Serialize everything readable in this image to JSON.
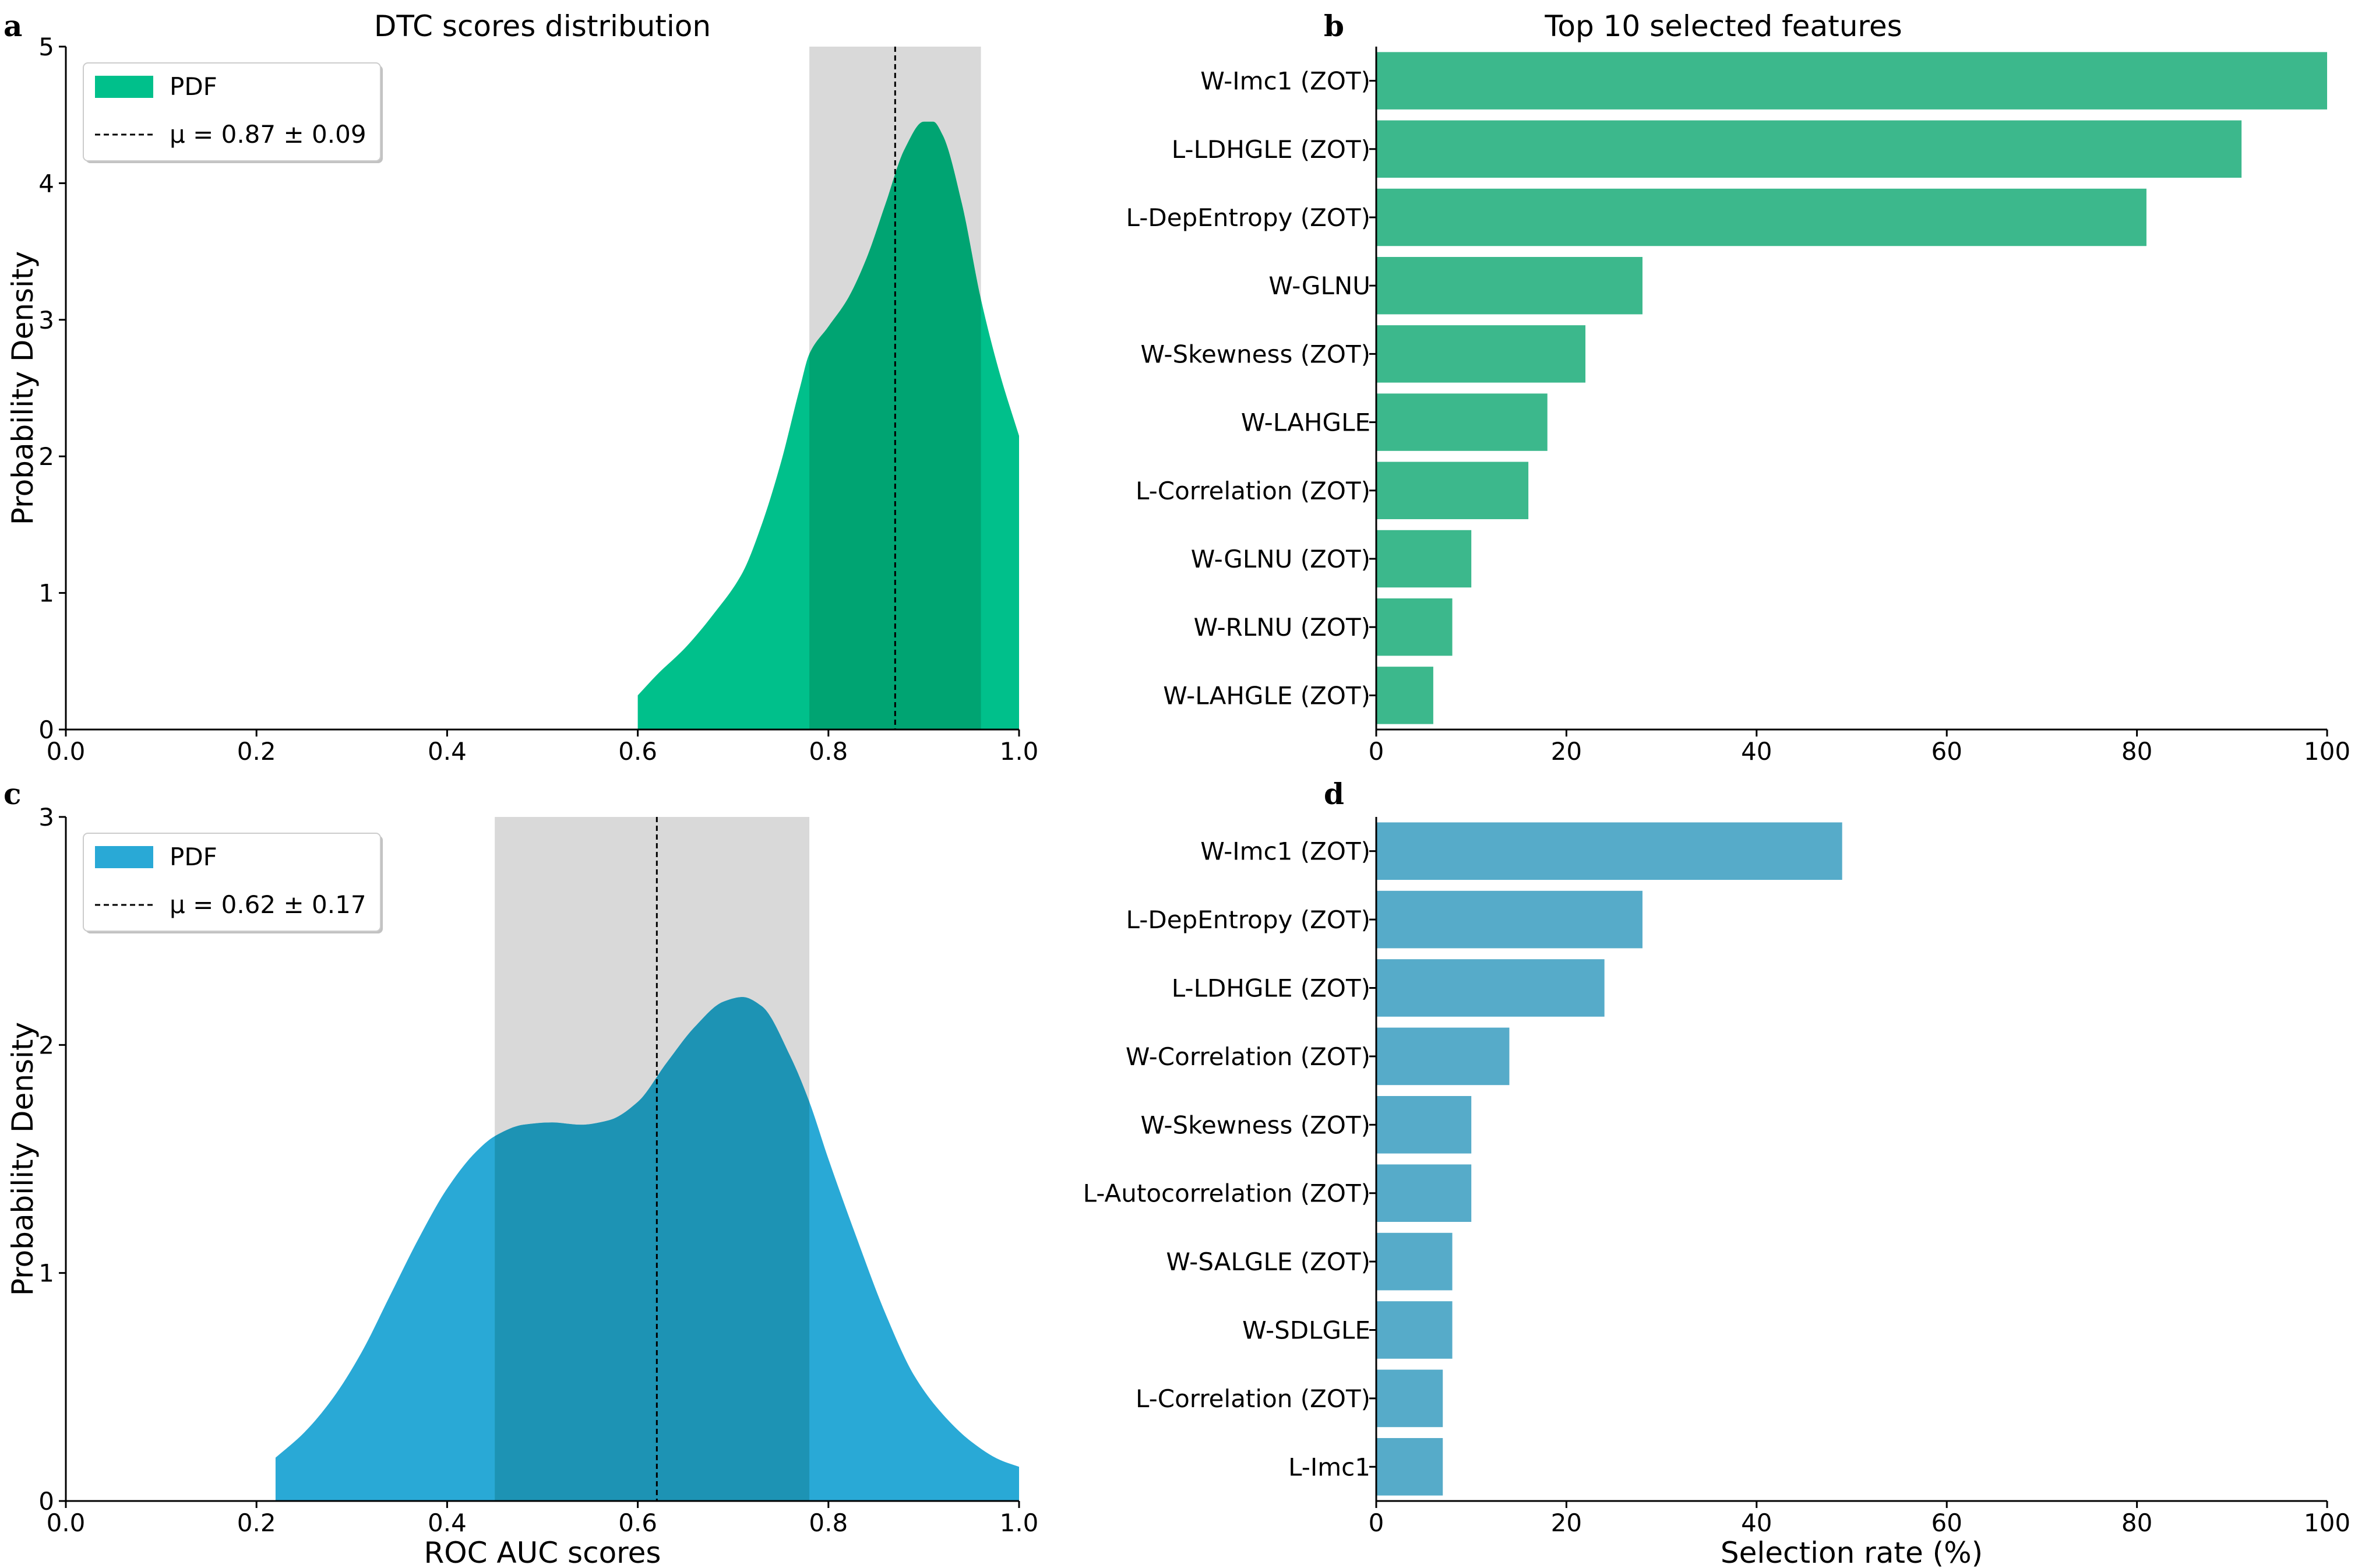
{
  "chart_data": [
    {
      "panel": "a",
      "type": "area",
      "title": "DTC scores distribution",
      "xlabel": "",
      "ylabel": "Probability Density",
      "xlim": [
        0.0,
        1.0
      ],
      "ylim": [
        0,
        5
      ],
      "xticks": [
        0.0,
        0.2,
        0.4,
        0.6,
        0.8,
        1.0
      ],
      "xtick_labels": [
        "0.0",
        "0.2",
        "0.4",
        "0.6",
        "0.8",
        "1.0"
      ],
      "yticks": [
        0,
        1,
        2,
        3,
        4,
        5
      ],
      "ytick_labels": [
        "0",
        "1",
        "2",
        "3",
        "4",
        "5"
      ],
      "series": [
        {
          "name": "PDF",
          "x": [
            0.6,
            0.62,
            0.65,
            0.68,
            0.71,
            0.73,
            0.75,
            0.77,
            0.78,
            0.8,
            0.82,
            0.84,
            0.86,
            0.88,
            0.9,
            0.91,
            0.92,
            0.94,
            0.96,
            0.98,
            1.0
          ],
          "y": [
            0.25,
            0.4,
            0.6,
            0.85,
            1.15,
            1.5,
            1.95,
            2.5,
            2.75,
            2.95,
            3.15,
            3.45,
            3.85,
            4.25,
            4.45,
            4.45,
            4.35,
            3.85,
            3.15,
            2.6,
            2.15
          ]
        }
      ],
      "mean": 0.87,
      "std": 0.09,
      "band": [
        0.78,
        0.96
      ],
      "legend": {
        "pdf_label": "PDF",
        "mean_label": "μ = 0.87 ± 0.09",
        "placement": "upper-left"
      },
      "colors": {
        "fill": "#00c08b",
        "fill_dark": "#00a472",
        "band": "#d9d9d9"
      }
    },
    {
      "panel": "b",
      "type": "bar",
      "orientation": "horizontal",
      "title": "Top 10 selected features",
      "xlabel": "",
      "xlim": [
        0,
        100
      ],
      "xticks": [
        0,
        20,
        40,
        60,
        80,
        100
      ],
      "xtick_labels": [
        "0",
        "20",
        "40",
        "60",
        "80",
        "100"
      ],
      "categories": [
        "W-Imc1 (ZOT)",
        "L-LDHGLE (ZOT)",
        "L-DepEntropy (ZOT)",
        "W-GLNU",
        "W-Skewness (ZOT)",
        "W-LAHGLE",
        "L-Correlation (ZOT)",
        "W-GLNU (ZOT)",
        "W-RLNU (ZOT)",
        "W-LAHGLE (ZOT)"
      ],
      "values": [
        100,
        91,
        81,
        28,
        22,
        18,
        16,
        10,
        8,
        6
      ],
      "colors": {
        "bar": "#3cb88c"
      }
    },
    {
      "panel": "c",
      "type": "area",
      "title": "",
      "xlabel": "ROC AUC scores",
      "ylabel": "Probability Density",
      "xlim": [
        0.0,
        1.0
      ],
      "ylim": [
        0,
        3
      ],
      "xticks": [
        0.0,
        0.2,
        0.4,
        0.6,
        0.8,
        1.0
      ],
      "xtick_labels": [
        "0.0",
        "0.2",
        "0.4",
        "0.6",
        "0.8",
        "1.0"
      ],
      "yticks": [
        0,
        1,
        2,
        3
      ],
      "ytick_labels": [
        "0",
        "1",
        "2",
        "3"
      ],
      "series": [
        {
          "name": "PDF",
          "x": [
            0.22,
            0.25,
            0.28,
            0.31,
            0.34,
            0.37,
            0.4,
            0.43,
            0.45,
            0.48,
            0.51,
            0.54,
            0.57,
            0.6,
            0.63,
            0.66,
            0.69,
            0.71,
            0.73,
            0.76,
            0.78,
            0.8,
            0.83,
            0.86,
            0.89,
            0.92,
            0.95,
            0.98,
            1.0
          ],
          "y": [
            0.19,
            0.3,
            0.45,
            0.65,
            0.9,
            1.15,
            1.37,
            1.53,
            1.6,
            1.65,
            1.66,
            1.65,
            1.67,
            1.75,
            1.92,
            2.08,
            2.19,
            2.21,
            2.17,
            1.95,
            1.75,
            1.5,
            1.15,
            0.82,
            0.55,
            0.38,
            0.26,
            0.18,
            0.15
          ]
        }
      ],
      "mean": 0.62,
      "std": 0.17,
      "band": [
        0.45,
        0.78
      ],
      "legend": {
        "pdf_label": "PDF",
        "mean_label": "μ = 0.62 ± 0.17",
        "placement": "upper-left"
      },
      "colors": {
        "fill": "#29a9d6",
        "fill_dark": "#1d93b4",
        "band": "#d9d9d9"
      }
    },
    {
      "panel": "d",
      "type": "bar",
      "orientation": "horizontal",
      "title": "",
      "xlabel": "Selection rate (%)",
      "xlim": [
        0,
        100
      ],
      "xticks": [
        0,
        20,
        40,
        60,
        80,
        100
      ],
      "xtick_labels": [
        "0",
        "20",
        "40",
        "60",
        "80",
        "100"
      ],
      "categories": [
        "W-Imc1 (ZOT)",
        "L-DepEntropy (ZOT)",
        "L-LDHGLE (ZOT)",
        "W-Correlation (ZOT)",
        "W-Skewness (ZOT)",
        "L-Autocorrelation (ZOT)",
        "W-SALGLE (ZOT)",
        "W-SDLGLE",
        "L-Correlation (ZOT)",
        "L-Imc1"
      ],
      "values": [
        49,
        28,
        24,
        14,
        10,
        10,
        8,
        8,
        7,
        7
      ],
      "colors": {
        "bar": "#56abc9"
      }
    }
  ]
}
